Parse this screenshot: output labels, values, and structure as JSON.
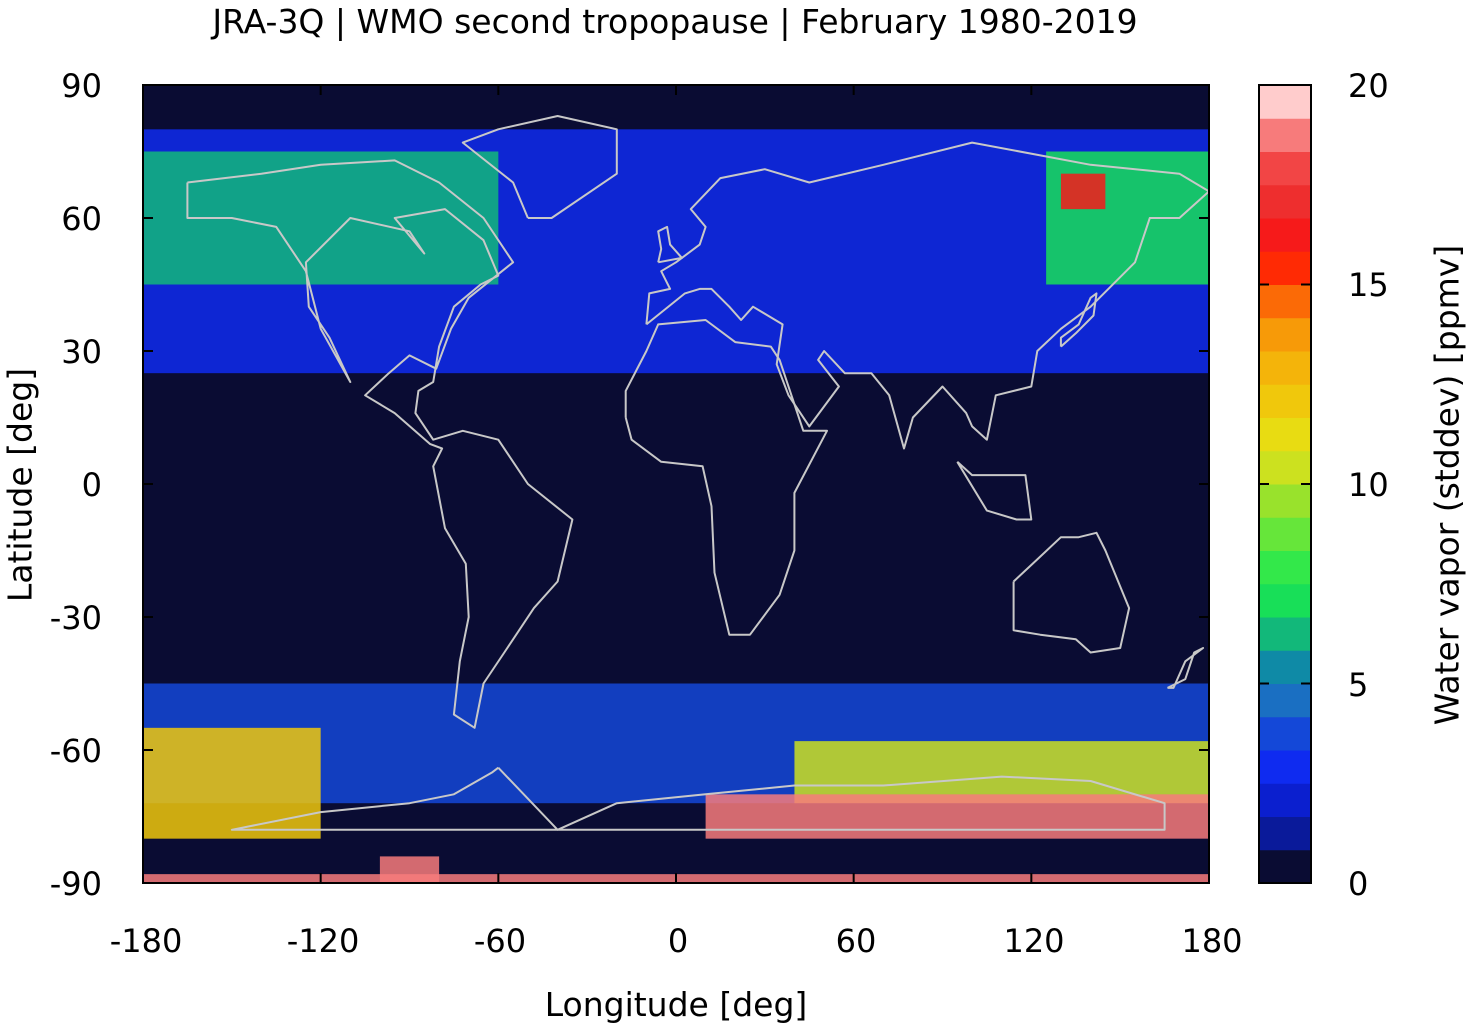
{
  "title": "JRA-3Q | WMO second tropopause | February 1980-2019",
  "axes": {
    "x_label": "Longitude [deg]",
    "y_label": "Latitude [deg]",
    "x_ticks": [
      "-180",
      "-120",
      "-60",
      "0",
      "60",
      "120",
      "180"
    ],
    "y_ticks": [
      "90",
      "60",
      "30",
      "0",
      "-30",
      "-60",
      "-90"
    ]
  },
  "colorbar": {
    "label": "Water vapor (stddev) [ppmv]",
    "ticks": [
      "20",
      "15",
      "10",
      "5",
      "0"
    ],
    "colors": [
      "#0a0c33",
      "#0a1a9a",
      "#0b1fcf",
      "#0f2bf0",
      "#1448d8",
      "#1a6fc2",
      "#0f8aa6",
      "#12b87a",
      "#18df58",
      "#33e84a",
      "#66e63a",
      "#99e22c",
      "#cce11f",
      "#e8dc12",
      "#f0c80c",
      "#f4b40a",
      "#f79a08",
      "#fb6a06",
      "#ff2a04",
      "#f61a1a",
      "#ee2e2e",
      "#f24545",
      "#f77b7b",
      "#ffcccc"
    ]
  },
  "chart_data": {
    "type": "heatmap",
    "title": "JRA-3Q | WMO second tropopause | February 1980-2019",
    "xlabel": "Longitude [deg]",
    "ylabel": "Latitude [deg]",
    "xlim": [
      -180,
      180
    ],
    "ylim": [
      -90,
      90
    ],
    "colorbar_label": "Water vapor (stddev) [ppmv]",
    "zlim": [
      0,
      20
    ],
    "background_value": 0.5,
    "regions": [
      {
        "lon": [
          -180,
          180
        ],
        "lat": [
          25,
          80
        ],
        "value": 3
      },
      {
        "lon": [
          -180,
          -60
        ],
        "lat": [
          45,
          75
        ],
        "value": 6
      },
      {
        "lon": [
          125,
          180
        ],
        "lat": [
          45,
          75
        ],
        "value": 7
      },
      {
        "lon": [
          130,
          145
        ],
        "lat": [
          62,
          70
        ],
        "value": 16
      },
      {
        "lon": [
          -180,
          180
        ],
        "lat": [
          -72,
          -45
        ],
        "value": 4
      },
      {
        "lon": [
          -180,
          -120
        ],
        "lat": [
          -80,
          -55
        ],
        "value": 12
      },
      {
        "lon": [
          40,
          180
        ],
        "lat": [
          -72,
          -58
        ],
        "value": 10
      },
      {
        "lon": [
          10,
          180
        ],
        "lat": [
          -80,
          -70
        ],
        "value": 19
      },
      {
        "lon": [
          -100,
          -80
        ],
        "lat": [
          -90,
          -84
        ],
        "value": 19
      },
      {
        "lon": [
          -180,
          180
        ],
        "lat": [
          -90,
          -88
        ],
        "value": 19
      }
    ]
  }
}
